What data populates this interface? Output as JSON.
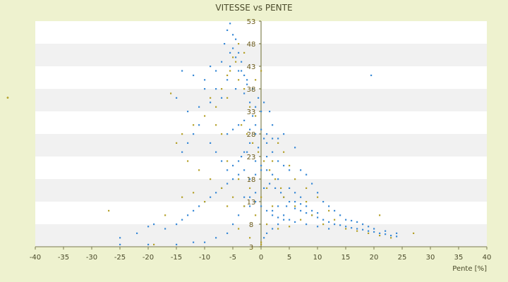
{
  "chart_data": {
    "type": "scatter",
    "title": "VITESSE vs PENTE",
    "xlabel": "Pente [%]",
    "ylabel": "",
    "xlim": [
      -40,
      40
    ],
    "ylim": [
      3,
      53
    ],
    "x_ticks": [
      "-40",
      "-35",
      "-30",
      "-25",
      "-20",
      "-15",
      "-10",
      "-5",
      "0",
      "5",
      "10",
      "15",
      "20",
      "25",
      "30",
      "35",
      "40"
    ],
    "y_ticks": [
      "3",
      "8",
      "13",
      "18",
      "23",
      "28",
      "33",
      "38",
      "43",
      "48",
      "53"
    ],
    "grid": "horizontal bands",
    "series": [
      {
        "color": "#3a8ad6",
        "points": [
          [
            -6,
            51
          ],
          [
            -5.5,
            52.5
          ],
          [
            -5,
            50
          ],
          [
            -4.5,
            49
          ],
          [
            -6.5,
            48
          ],
          [
            -5,
            47
          ],
          [
            -4,
            46
          ],
          [
            -3.5,
            44
          ],
          [
            -5.5,
            43
          ],
          [
            -4,
            42
          ],
          [
            -3,
            41
          ],
          [
            -6,
            40
          ],
          [
            -2.5,
            39
          ],
          [
            -4.5,
            38
          ],
          [
            -3,
            37
          ],
          [
            -7,
            36
          ],
          [
            -8,
            38
          ],
          [
            -10,
            40
          ],
          [
            -12,
            41
          ],
          [
            -14,
            42
          ],
          [
            -9,
            35
          ],
          [
            -11,
            34
          ],
          [
            -13,
            33
          ],
          [
            -15,
            36
          ],
          [
            -2,
            35
          ],
          [
            -1,
            34
          ],
          [
            0,
            33
          ],
          [
            -1.5,
            32
          ],
          [
            -3,
            31
          ],
          [
            -4,
            30
          ],
          [
            -5,
            29
          ],
          [
            -6,
            28
          ],
          [
            -2,
            29
          ],
          [
            -1,
            28
          ],
          [
            0.5,
            27
          ],
          [
            1,
            26
          ],
          [
            -0.5,
            25
          ],
          [
            -2.5,
            24
          ],
          [
            -3.5,
            23
          ],
          [
            -1,
            22
          ],
          [
            0,
            21
          ],
          [
            1,
            20
          ],
          [
            2,
            19
          ],
          [
            3,
            18
          ],
          [
            1.5,
            17
          ],
          [
            0.5,
            16
          ],
          [
            -1,
            15
          ],
          [
            -2,
            14
          ],
          [
            2.5,
            16
          ],
          [
            3.5,
            15
          ],
          [
            4,
            14
          ],
          [
            5,
            13
          ],
          [
            4.5,
            12
          ],
          [
            6,
            11.5
          ],
          [
            7,
            11
          ],
          [
            8,
            10.5
          ],
          [
            9,
            10
          ],
          [
            10,
            9.5
          ],
          [
            11,
            9
          ],
          [
            12,
            8.5
          ],
          [
            13,
            8
          ],
          [
            14,
            7.8
          ],
          [
            15,
            7.5
          ],
          [
            16,
            7.2
          ],
          [
            17,
            7
          ],
          [
            18,
            6.8
          ],
          [
            19,
            6.5
          ],
          [
            20,
            6.3
          ],
          [
            21,
            6
          ],
          [
            22,
            5.8
          ],
          [
            23,
            5.5
          ],
          [
            24,
            5.3
          ],
          [
            6,
            13
          ],
          [
            7,
            12.5
          ],
          [
            8,
            12
          ],
          [
            9,
            11
          ],
          [
            10,
            10.5
          ],
          [
            5,
            16
          ],
          [
            6,
            15
          ],
          [
            7,
            14
          ],
          [
            3,
            12
          ],
          [
            2,
            11
          ],
          [
            4,
            10
          ],
          [
            5,
            9
          ],
          [
            3,
            8
          ],
          [
            2,
            7
          ],
          [
            1,
            6
          ],
          [
            0.5,
            5
          ],
          [
            -3,
            20
          ],
          [
            -4,
            19
          ],
          [
            -5,
            18
          ],
          [
            -6,
            17
          ],
          [
            -7,
            16
          ],
          [
            -8,
            15
          ],
          [
            -9,
            14
          ],
          [
            -10,
            13
          ],
          [
            -11,
            12
          ],
          [
            -12,
            11
          ],
          [
            -13,
            10
          ],
          [
            -14,
            9
          ],
          [
            -15,
            8
          ],
          [
            -17,
            7
          ],
          [
            -19,
            8
          ],
          [
            -20,
            7.5
          ],
          [
            -22,
            6
          ],
          [
            -25,
            5
          ],
          [
            -25,
            3.5
          ],
          [
            -20,
            3.5
          ],
          [
            -15,
            3.5
          ],
          [
            -12,
            4
          ],
          [
            -10,
            4
          ],
          [
            -8,
            5
          ],
          [
            -6,
            6
          ],
          [
            -5,
            8
          ],
          [
            -4,
            10
          ],
          [
            -3,
            12
          ],
          [
            -2,
            18
          ],
          [
            -1,
            19
          ],
          [
            0,
            20
          ],
          [
            1,
            23
          ],
          [
            2,
            24
          ],
          [
            3,
            22
          ],
          [
            4,
            21
          ],
          [
            5,
            20
          ],
          [
            6,
            25
          ],
          [
            4,
            28
          ],
          [
            3,
            27
          ],
          [
            2,
            30
          ],
          [
            -0.5,
            36
          ],
          [
            0.5,
            35
          ],
          [
            1.5,
            33
          ],
          [
            -1.5,
            38
          ],
          [
            -2.5,
            40
          ],
          [
            -3.5,
            42
          ],
          [
            -4.5,
            45
          ],
          [
            -5.5,
            46
          ],
          [
            -7,
            44
          ],
          [
            -8,
            42
          ],
          [
            -9,
            43
          ],
          [
            -10,
            38
          ],
          [
            -11,
            30
          ],
          [
            -12,
            28
          ],
          [
            -13,
            26
          ],
          [
            -14,
            24
          ],
          [
            -9,
            26
          ],
          [
            -8,
            24
          ],
          [
            -7,
            22
          ],
          [
            -6,
            20
          ],
          [
            -5,
            21
          ],
          [
            -4,
            22
          ],
          [
            -3,
            24
          ],
          [
            -2,
            26
          ],
          [
            -1,
            30
          ],
          [
            0,
            29
          ],
          [
            1,
            28
          ],
          [
            2,
            27
          ],
          [
            7,
            20
          ],
          [
            8,
            19
          ],
          [
            9,
            17
          ],
          [
            10,
            15
          ],
          [
            11,
            13
          ],
          [
            12,
            12
          ],
          [
            13,
            11
          ],
          [
            14,
            10
          ],
          [
            15,
            9
          ],
          [
            16,
            8.8
          ],
          [
            17,
            8.5
          ],
          [
            18,
            8
          ],
          [
            19,
            7.5
          ],
          [
            20,
            7
          ],
          [
            22,
            6.5
          ],
          [
            24,
            6
          ],
          [
            12,
            7
          ],
          [
            10,
            7.5
          ],
          [
            8,
            8
          ],
          [
            6,
            8.5
          ],
          [
            4,
            9
          ],
          [
            3,
            9.5
          ],
          [
            2,
            10
          ],
          [
            1,
            11
          ],
          [
            0,
            12
          ],
          [
            -1,
            13
          ],
          [
            -2,
            12
          ],
          [
            -3,
            14
          ],
          [
            19.5,
            41
          ]
        ]
      },
      {
        "color": "#b5a12a",
        "points": [
          [
            -5,
            45
          ],
          [
            -4.5,
            44
          ],
          [
            -5.5,
            42
          ],
          [
            -4,
            40
          ],
          [
            -3,
            38
          ],
          [
            -6,
            36
          ],
          [
            -2,
            34
          ],
          [
            -1,
            32
          ],
          [
            -3.5,
            30
          ],
          [
            -2.5,
            28
          ],
          [
            -1.5,
            26
          ],
          [
            -0.5,
            24
          ],
          [
            0.5,
            22
          ],
          [
            1.5,
            20
          ],
          [
            2.5,
            18
          ],
          [
            3.5,
            16
          ],
          [
            -8,
            34
          ],
          [
            -10,
            32
          ],
          [
            -12,
            30
          ],
          [
            -14,
            28
          ],
          [
            -15,
            26
          ],
          [
            -16,
            37
          ],
          [
            -13,
            22
          ],
          [
            -11,
            20
          ],
          [
            -9,
            18
          ],
          [
            -7,
            16
          ],
          [
            -5,
            14
          ],
          [
            -3,
            12
          ],
          [
            -1,
            10
          ],
          [
            1,
            8
          ],
          [
            3,
            7
          ],
          [
            5,
            7.5
          ],
          [
            7,
            9
          ],
          [
            9,
            10
          ],
          [
            11,
            8
          ],
          [
            13,
            9
          ],
          [
            15,
            7
          ],
          [
            17,
            6.5
          ],
          [
            19,
            6
          ],
          [
            21,
            5.5
          ],
          [
            23,
            5
          ],
          [
            27,
            6
          ],
          [
            21,
            10
          ],
          [
            6,
            18
          ],
          [
            8,
            16
          ],
          [
            10,
            14
          ],
          [
            4,
            14
          ],
          [
            2,
            12
          ],
          [
            0,
            14
          ],
          [
            -2,
            16
          ],
          [
            -4,
            18
          ],
          [
            -6,
            22
          ],
          [
            -7,
            28
          ],
          [
            -8,
            30
          ],
          [
            -27,
            11
          ],
          [
            -19,
            3.5
          ],
          [
            -17,
            10
          ],
          [
            -14,
            14
          ],
          [
            -12,
            15
          ],
          [
            -10,
            13
          ],
          [
            -6,
            12
          ],
          [
            -4,
            7
          ],
          [
            -2,
            5
          ],
          [
            0,
            4
          ],
          [
            0,
            3.5
          ],
          [
            1,
            16
          ],
          [
            2,
            22
          ],
          [
            3,
            26
          ],
          [
            4,
            24
          ],
          [
            5,
            21
          ],
          [
            -1,
            40
          ],
          [
            0,
            42
          ],
          [
            -3,
            46
          ],
          [
            -4,
            48
          ],
          [
            -6,
            41
          ],
          [
            -7,
            38
          ],
          [
            -9,
            36
          ],
          [
            6,
            12
          ],
          [
            8,
            13
          ],
          [
            12,
            11
          ]
        ]
      }
    ]
  }
}
